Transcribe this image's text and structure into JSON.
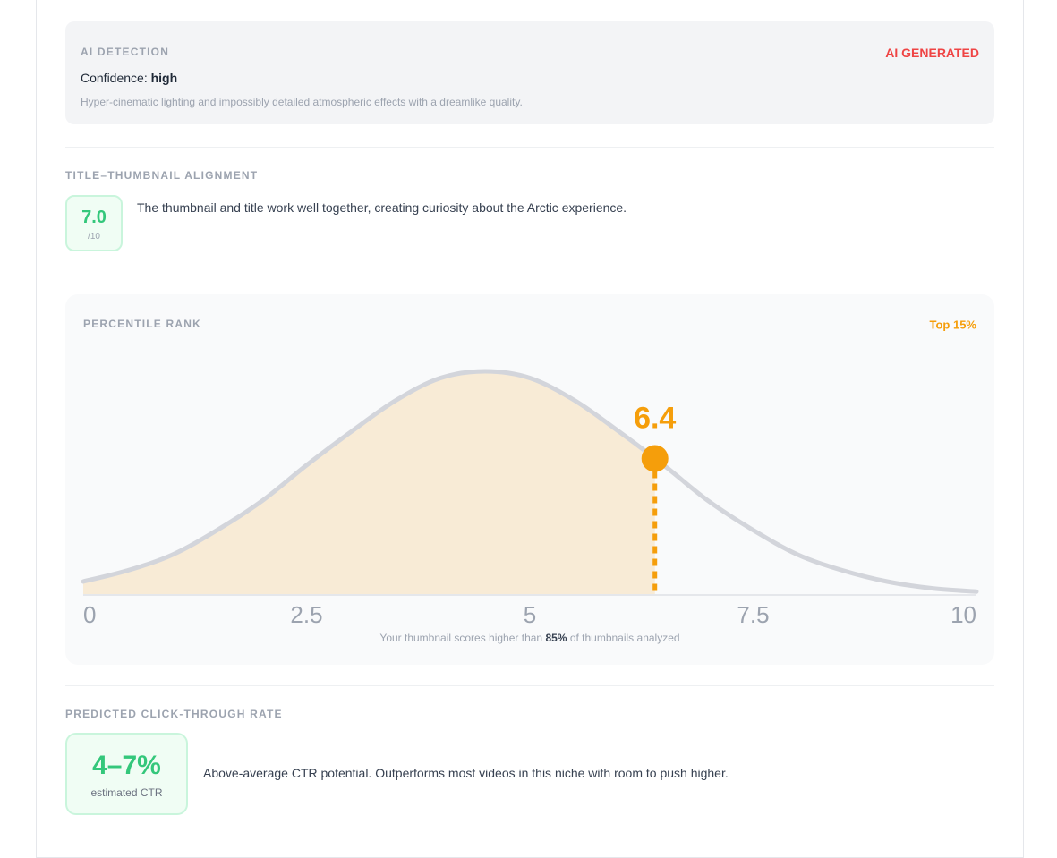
{
  "ai_detection": {
    "label": "AI DETECTION",
    "verdict": "AI GENERATED",
    "confidence_label": "Confidence:",
    "confidence": "high",
    "description": "Hyper-cinematic lighting and impossibly detailed atmospheric effects with a dreamlike quality."
  },
  "alignment": {
    "label": "TITLE–THUMBNAIL ALIGNMENT",
    "score": "7.0",
    "scale": "/10",
    "text": "The thumbnail and title work well together, creating curiosity about the Arctic experience."
  },
  "chart_data": {
    "type": "area",
    "title": "PERCENTILE RANK",
    "badge": "Top 15%",
    "x": [
      0,
      0.5,
      1,
      1.5,
      2,
      2.5,
      3,
      3.5,
      4,
      4.5,
      5,
      5.5,
      6,
      6.5,
      7,
      7.5,
      8,
      8.5,
      9,
      9.5,
      10
    ],
    "values": [
      0.06,
      0.11,
      0.18,
      0.29,
      0.42,
      0.58,
      0.73,
      0.87,
      0.97,
      1,
      0.97,
      0.87,
      0.73,
      0.58,
      0.42,
      0.29,
      0.18,
      0.11,
      0.06,
      0.03,
      0.015
    ],
    "xlim": [
      0,
      10
    ],
    "ylim": [
      0,
      1
    ],
    "xticks": [
      0,
      2.5,
      5,
      7.5,
      10
    ],
    "color": "#d3d5db",
    "fill_color": "#f8ebd6",
    "marker": {
      "x": 6.4,
      "color": "#f59e0b"
    },
    "note_before": "Your thumbnail scores higher than",
    "note_value": "85%",
    "note_after": "of thumbnails analyzed"
  },
  "ctr": {
    "label": "PREDICTED CLICK-THROUGH RATE",
    "range": "4–7%",
    "caption": "estimated CTR",
    "text": "Above-average CTR potential. Outperforms most videos in this niche with room to push higher."
  }
}
